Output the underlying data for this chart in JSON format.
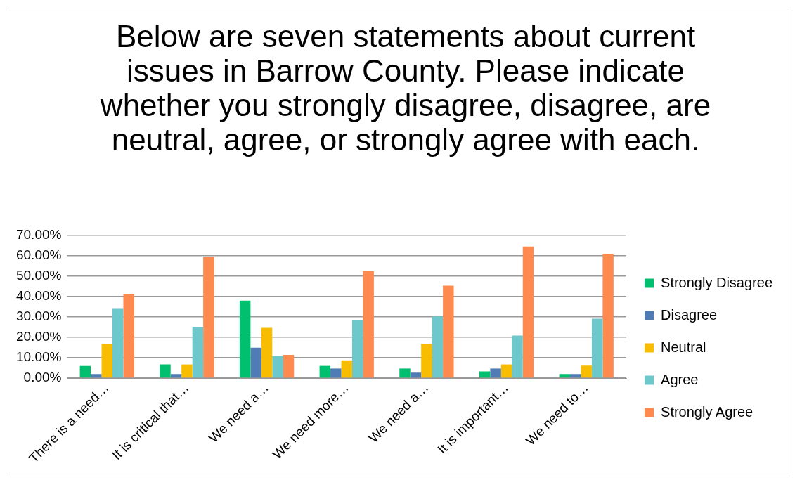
{
  "chart_data": {
    "type": "bar",
    "title": "Below are seven statements about current issues in Barrow County. Please indicate whether you strongly disagree, disagree, are neutral, agree, or strongly agree with each.",
    "categories": [
      "There is a need…",
      "It is critical that…",
      "We need a…",
      "We need more…",
      "We need a…",
      "It is important…",
      "We need to…"
    ],
    "series": [
      {
        "name": "Strongly Disagree",
        "color": "#00bf6f",
        "values": [
          6.0,
          6.7,
          37.9,
          6.0,
          4.7,
          3.3,
          2.0
        ]
      },
      {
        "name": "Disagree",
        "color": "#4f7cb5",
        "values": [
          2.0,
          2.0,
          14.9,
          4.7,
          2.7,
          4.7,
          2.0
        ]
      },
      {
        "name": "Neutral",
        "color": "#f8bd00",
        "values": [
          16.8,
          6.7,
          24.6,
          8.7,
          16.8,
          6.7,
          6.1
        ]
      },
      {
        "name": "Agree",
        "color": "#6dc8cc",
        "values": [
          34.2,
          25.0,
          10.8,
          28.2,
          30.2,
          20.8,
          29.1
        ]
      },
      {
        "name": "Strongly Agree",
        "color": "#ff8a4f",
        "values": [
          41.0,
          59.5,
          11.4,
          52.3,
          45.2,
          64.4,
          60.8
        ]
      }
    ],
    "ylim": [
      0,
      70
    ],
    "yticks": [
      {
        "value": 0,
        "label": "0.00%"
      },
      {
        "value": 10,
        "label": "10.00%"
      },
      {
        "value": 20,
        "label": "20.00%"
      },
      {
        "value": 30,
        "label": "30.00%"
      },
      {
        "value": 40,
        "label": "40.00%"
      },
      {
        "value": 50,
        "label": "50.00%"
      },
      {
        "value": 60,
        "label": "60.00%"
      },
      {
        "value": 70,
        "label": "70.00%"
      }
    ],
    "grid": "y",
    "legend": "right"
  }
}
